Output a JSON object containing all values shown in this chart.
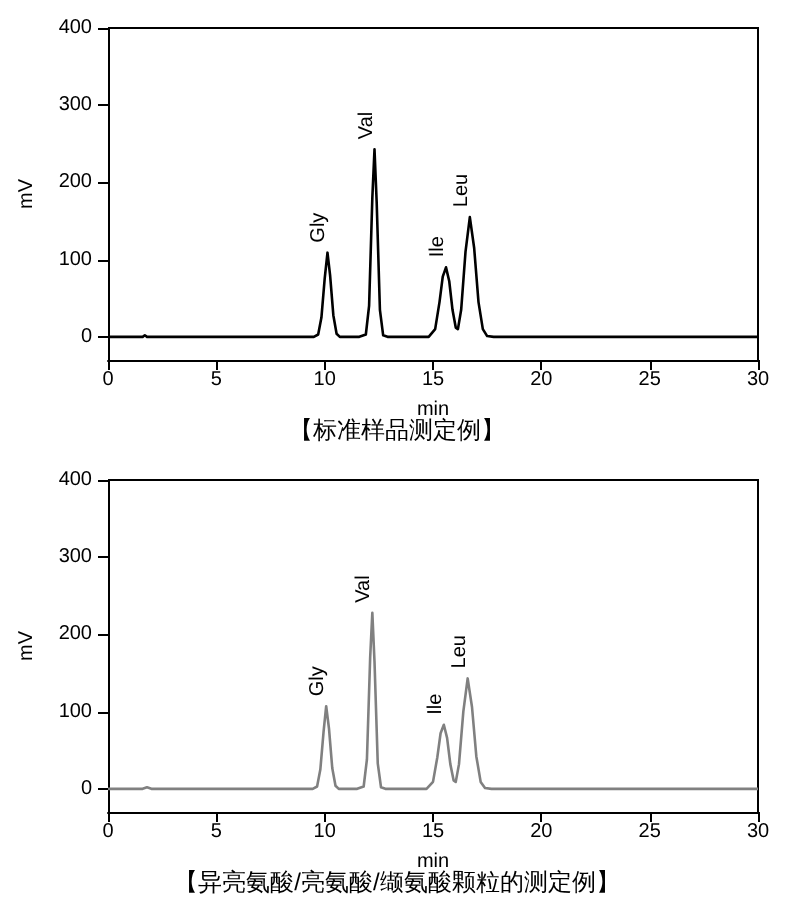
{
  "chart_data": [
    {
      "type": "line",
      "title": "【标准样品测定例】",
      "xlabel": "min",
      "ylabel": "mV",
      "xlim": [
        0,
        30
      ],
      "xticks": [
        0,
        5,
        10,
        15,
        20,
        25,
        30
      ],
      "ylim": [
        -30,
        400
      ],
      "yticks": [
        0,
        100,
        200,
        300,
        400
      ],
      "marker": "none",
      "series": [
        {
          "color": "#000000",
          "x": [
            0,
            1.6,
            1.7,
            1.8,
            9.5,
            9.7,
            9.85,
            10.0,
            10.13,
            10.25,
            10.4,
            10.55,
            10.7,
            11.6,
            11.9,
            12.05,
            12.2,
            12.3,
            12.4,
            12.55,
            12.7,
            12.9,
            14.8,
            15.1,
            15.3,
            15.45,
            15.6,
            15.75,
            15.9,
            16.05,
            16.15,
            16.3,
            16.5,
            16.7,
            16.9,
            17.1,
            17.3,
            17.5,
            17.8,
            30
          ],
          "values": [
            0,
            0,
            2,
            0,
            0,
            3,
            25,
            75,
            109,
            80,
            28,
            4,
            0,
            0,
            3,
            40,
            180,
            243,
            175,
            35,
            2,
            0,
            0,
            10,
            45,
            78,
            90,
            72,
            35,
            12,
            10,
            35,
            110,
            155,
            115,
            45,
            10,
            1,
            0,
            0
          ]
        }
      ],
      "annotations": [
        {
          "text": "Gly",
          "x": 10.13,
          "y": 109
        },
        {
          "text": "Val",
          "x": 12.3,
          "y": 243
        },
        {
          "text": "Ile",
          "x": 15.6,
          "y": 90
        },
        {
          "text": "Leu",
          "x": 16.7,
          "y": 155
        }
      ]
    },
    {
      "type": "line",
      "title": "【异亮氨酸/亮氨酸/缬氨酸颗粒的测定例】",
      "xlabel": "min",
      "ylabel": "mV",
      "xlim": [
        0,
        30
      ],
      "xticks": [
        0,
        5,
        10,
        15,
        20,
        25,
        30
      ],
      "ylim": [
        -30,
        400
      ],
      "yticks": [
        0,
        100,
        200,
        300,
        400
      ],
      "marker": "none",
      "series": [
        {
          "color": "#808080",
          "x": [
            0,
            1.6,
            1.8,
            2.0,
            9.45,
            9.65,
            9.8,
            9.95,
            10.07,
            10.2,
            10.35,
            10.5,
            10.65,
            11.5,
            11.8,
            11.95,
            12.1,
            12.2,
            12.3,
            12.45,
            12.6,
            12.8,
            14.7,
            15.0,
            15.2,
            15.35,
            15.5,
            15.65,
            15.8,
            15.95,
            16.05,
            16.2,
            16.4,
            16.6,
            16.8,
            17.0,
            17.2,
            17.4,
            17.7,
            30
          ],
          "values": [
            0,
            0,
            2,
            0,
            0,
            3,
            25,
            74,
            107,
            78,
            27,
            4,
            0,
            0,
            3,
            38,
            170,
            228,
            165,
            33,
            2,
            0,
            0,
            9,
            41,
            72,
            83,
            66,
            32,
            11,
            9,
            32,
            100,
            143,
            106,
            42,
            9,
            1,
            0,
            0
          ]
        }
      ],
      "annotations": [
        {
          "text": "Gly",
          "x": 10.07,
          "y": 107
        },
        {
          "text": "Val",
          "x": 12.2,
          "y": 228
        },
        {
          "text": "Ile",
          "x": 15.5,
          "y": 83
        },
        {
          "text": "Leu",
          "x": 16.6,
          "y": 143
        }
      ]
    }
  ]
}
